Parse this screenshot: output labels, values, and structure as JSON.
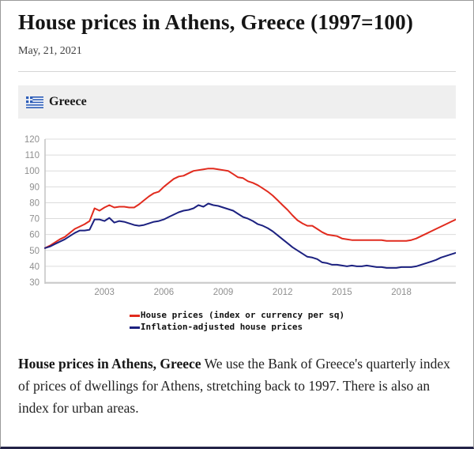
{
  "page": {
    "title": "House prices in Athens, Greece (1997=100)",
    "date": "May, 21, 2021"
  },
  "country_bar": {
    "label": "Greece",
    "flag_icon": "greek-flag-icon",
    "flag_blue": "#2e5eb8",
    "background": "#efefef"
  },
  "chart_data": {
    "type": "line",
    "title": "House prices in Athens, Greece (1997=100)",
    "xlabel": "",
    "ylabel": "",
    "xlim": [
      2000,
      2020.75
    ],
    "ylim": [
      30,
      120
    ],
    "x_start": 2000,
    "x_step": 0.25,
    "x_unit": "quarterly decimal year",
    "xticks": [
      2003,
      2006,
      2009,
      2012,
      2015,
      2018
    ],
    "yticks": [
      30,
      40,
      50,
      60,
      70,
      80,
      90,
      100,
      110,
      120
    ],
    "grid": "horizontal",
    "grid_color": "#dcdcdc",
    "axis_color": "#c4c4c4",
    "tick_color": "#8f8f8f",
    "legend_position": "bottom",
    "series": [
      {
        "name": "House prices (index or currency per sq)",
        "color": "#e12b1e",
        "values": [
          51.5,
          53,
          55,
          57,
          58.5,
          61,
          63.5,
          65,
          66.5,
          68.5,
          76.5,
          75,
          77,
          78.5,
          77,
          77.5,
          77.5,
          77,
          77,
          79,
          81.5,
          84,
          86,
          87,
          90,
          92.5,
          95,
          96.5,
          97,
          98.5,
          100,
          100.5,
          101,
          101.5,
          101.5,
          101,
          100.5,
          100,
          98,
          96,
          95.5,
          93.5,
          92.5,
          91,
          89,
          87,
          84.5,
          81.5,
          78.5,
          75.5,
          72,
          69,
          67,
          65.5,
          65.5,
          63.5,
          61.5,
          60,
          59.5,
          59,
          57.5,
          57,
          56.5,
          56.5,
          56.5,
          56.5,
          56.5,
          56.5,
          56.5,
          56,
          56,
          56,
          56,
          56,
          56.5,
          57.5,
          59,
          60.5,
          62,
          63.5,
          65,
          66.5,
          68,
          69.5
        ]
      },
      {
        "name": "Inflation-adjusted house prices",
        "color": "#1c2180",
        "values": [
          51.5,
          52.5,
          54,
          55.5,
          57,
          59,
          61,
          62.5,
          62.5,
          63,
          69.5,
          69.5,
          68.5,
          70.5,
          67.5,
          68.5,
          68,
          67,
          66,
          65.5,
          66,
          67,
          68,
          68.5,
          69.5,
          71,
          72.5,
          74,
          75,
          75.5,
          76.5,
          78.5,
          77.5,
          79.5,
          78.5,
          78,
          77,
          76,
          75,
          73,
          71,
          70,
          68.5,
          66.5,
          65.5,
          64,
          62,
          59.5,
          57,
          54.5,
          52,
          50,
          48,
          46,
          45.5,
          44.5,
          42.5,
          42,
          41,
          41,
          40.5,
          40,
          40.5,
          40,
          40,
          40.5,
          40,
          39.5,
          39.5,
          39,
          39,
          39,
          39.5,
          39.5,
          39.5,
          40,
          41,
          42,
          43,
          44,
          45.5,
          46.5,
          47.5,
          48.5
        ]
      }
    ]
  },
  "footer": {
    "bold_lead": "House prices in Athens, Greece",
    "text": " We use the Bank of Greece's quarterly index of prices of dwellings for Athens, stretching back to 1997. There is also an index for urban areas."
  }
}
